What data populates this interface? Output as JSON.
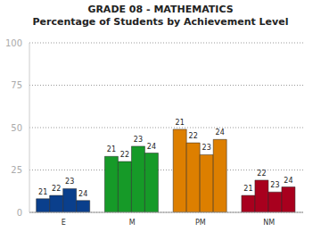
{
  "chart_data": {
    "type": "bar",
    "title": "GRADE 08 - MATHEMATICS",
    "subtitle": "Percentage of Students by Achievement Level",
    "categories": [
      "E",
      "M",
      "PM",
      "NM"
    ],
    "series": [
      {
        "name": "21",
        "values": [
          8,
          33,
          49,
          10
        ]
      },
      {
        "name": "22",
        "values": [
          10,
          30,
          41,
          19
        ]
      },
      {
        "name": "23",
        "values": [
          14,
          39,
          34,
          12
        ]
      },
      {
        "name": "24",
        "values": [
          7,
          35,
          43,
          15
        ]
      }
    ],
    "colors": [
      "#0a3f8c",
      "#169a28",
      "#dd7f00",
      "#a8001e"
    ],
    "ylim": [
      0,
      100
    ],
    "yticks": [
      0,
      25,
      50,
      75,
      100
    ],
    "grid": true
  }
}
